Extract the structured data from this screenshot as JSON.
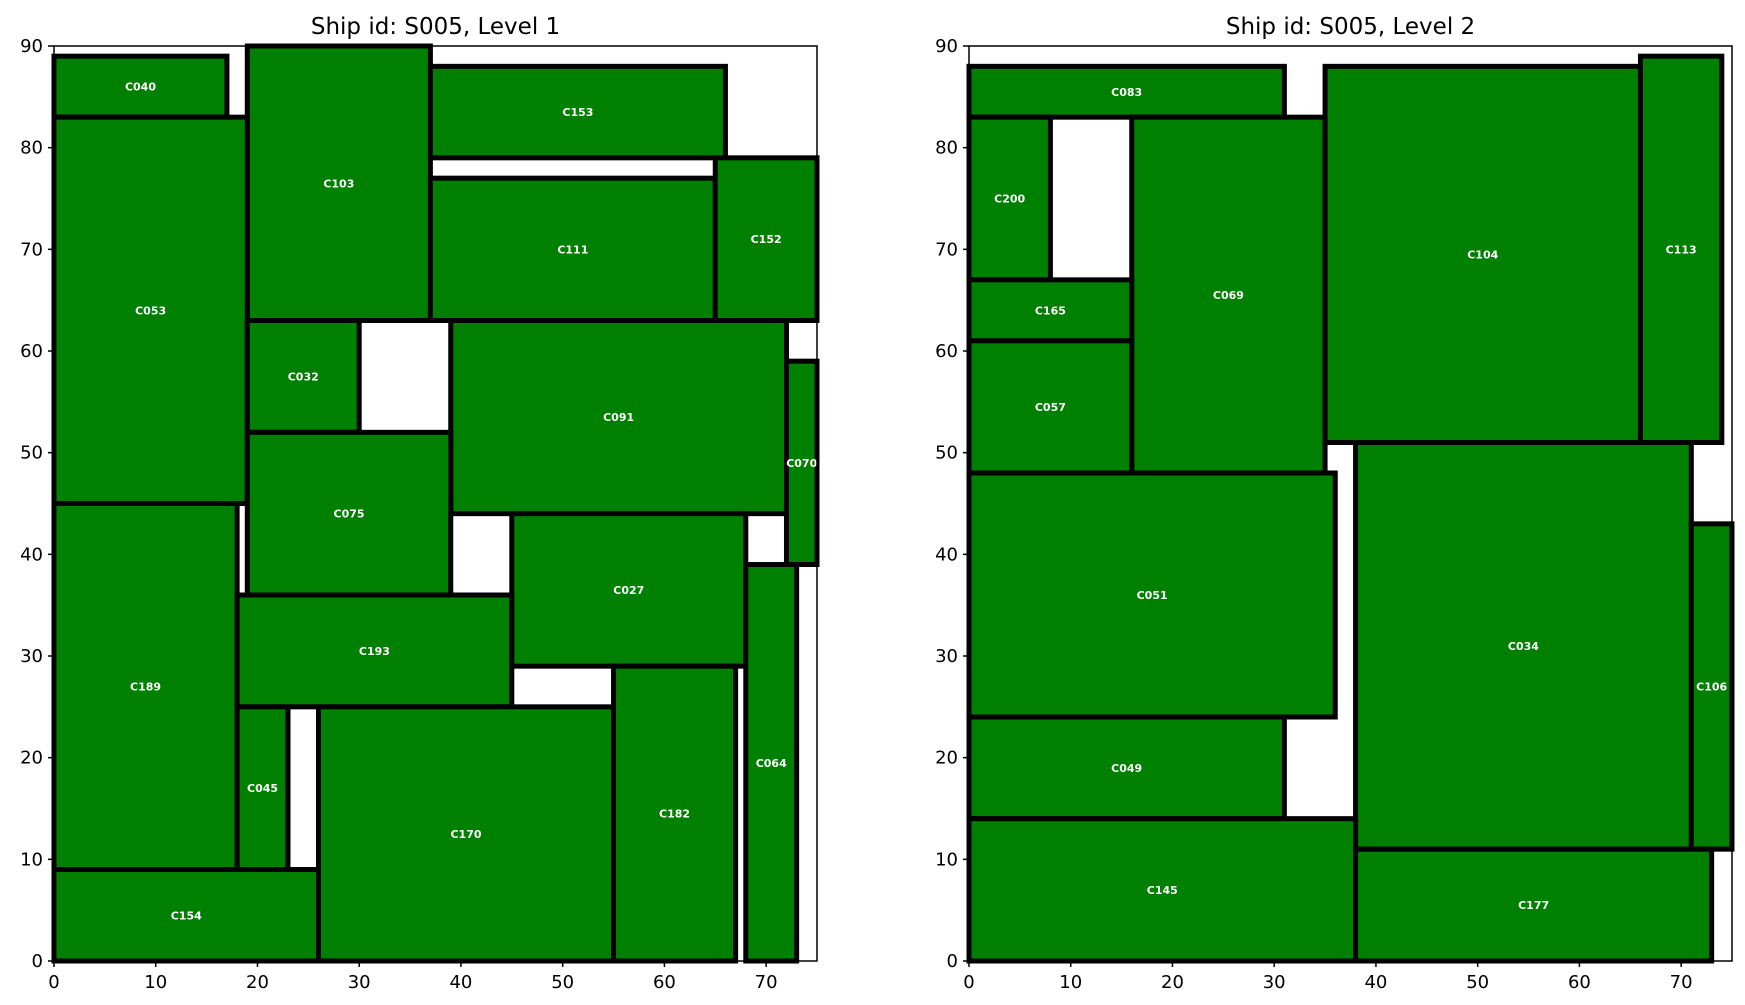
{
  "chart_data": [
    {
      "type": "rectangle_layout",
      "title": "Ship id: S005, Level 1",
      "xlim": [
        0,
        75
      ],
      "ylim": [
        0,
        90
      ],
      "xticks": [
        0,
        10,
        20,
        30,
        40,
        50,
        60,
        70
      ],
      "yticks": [
        0,
        10,
        20,
        30,
        40,
        50,
        60,
        70,
        80,
        90
      ],
      "grid": false,
      "fill_color": "#008000",
      "edge_color": "#000000",
      "label_color": "#ffffff",
      "containers": [
        {
          "id": "C040",
          "x": 0,
          "y": 83,
          "w": 17,
          "h": 6
        },
        {
          "id": "C103",
          "x": 19,
          "y": 63,
          "w": 18,
          "h": 27
        },
        {
          "id": "C153",
          "x": 37,
          "y": 79,
          "w": 29,
          "h": 9
        },
        {
          "id": "C053",
          "x": 0,
          "y": 45,
          "w": 19,
          "h": 38
        },
        {
          "id": "C111",
          "x": 37,
          "y": 63,
          "w": 28,
          "h": 14
        },
        {
          "id": "C152",
          "x": 65,
          "y": 63,
          "w": 10,
          "h": 16
        },
        {
          "id": "C032",
          "x": 19,
          "y": 52,
          "w": 11,
          "h": 11
        },
        {
          "id": "C091",
          "x": 39,
          "y": 44,
          "w": 33,
          "h": 19
        },
        {
          "id": "C070",
          "x": 72,
          "y": 39,
          "w": 3,
          "h": 20
        },
        {
          "id": "C075",
          "x": 19,
          "y": 36,
          "w": 20,
          "h": 16
        },
        {
          "id": "C189",
          "x": 0,
          "y": 9,
          "w": 18,
          "h": 36
        },
        {
          "id": "C027",
          "x": 45,
          "y": 29,
          "w": 23,
          "h": 15
        },
        {
          "id": "C193",
          "x": 18,
          "y": 25,
          "w": 27,
          "h": 11
        },
        {
          "id": "C045",
          "x": 18,
          "y": 9,
          "w": 5,
          "h": 16
        },
        {
          "id": "C170",
          "x": 26,
          "y": 0,
          "w": 29,
          "h": 25
        },
        {
          "id": "C182",
          "x": 55,
          "y": 0,
          "w": 12,
          "h": 29
        },
        {
          "id": "C064",
          "x": 68,
          "y": 0,
          "w": 5,
          "h": 39
        },
        {
          "id": "C154",
          "x": 0,
          "y": 0,
          "w": 26,
          "h": 9
        }
      ]
    },
    {
      "type": "rectangle_layout",
      "title": "Ship id: S005, Level 2",
      "xlim": [
        0,
        75
      ],
      "ylim": [
        0,
        90
      ],
      "xticks": [
        0,
        10,
        20,
        30,
        40,
        50,
        60,
        70
      ],
      "yticks": [
        0,
        10,
        20,
        30,
        40,
        50,
        60,
        70,
        80,
        90
      ],
      "grid": false,
      "fill_color": "#008000",
      "edge_color": "#000000",
      "label_color": "#ffffff",
      "containers": [
        {
          "id": "C083",
          "x": 0,
          "y": 83,
          "w": 31,
          "h": 5
        },
        {
          "id": "C200",
          "x": 0,
          "y": 67,
          "w": 8,
          "h": 16
        },
        {
          "id": "C069",
          "x": 16,
          "y": 48,
          "w": 19,
          "h": 35
        },
        {
          "id": "C104",
          "x": 35,
          "y": 51,
          "w": 31,
          "h": 37
        },
        {
          "id": "C113",
          "x": 66,
          "y": 51,
          "w": 8,
          "h": 38
        },
        {
          "id": "C165",
          "x": 0,
          "y": 61,
          "w": 16,
          "h": 6
        },
        {
          "id": "C057",
          "x": 0,
          "y": 48,
          "w": 16,
          "h": 13
        },
        {
          "id": "C051",
          "x": 0,
          "y": 24,
          "w": 36,
          "h": 24
        },
        {
          "id": "C034",
          "x": 38,
          "y": 11,
          "w": 33,
          "h": 40
        },
        {
          "id": "C106",
          "x": 71,
          "y": 11,
          "w": 4,
          "h": 32
        },
        {
          "id": "C049",
          "x": 0,
          "y": 14,
          "w": 31,
          "h": 10
        },
        {
          "id": "C145",
          "x": 0,
          "y": 0,
          "w": 38,
          "h": 14
        },
        {
          "id": "C177",
          "x": 38,
          "y": 0,
          "w": 35,
          "h": 11
        }
      ]
    }
  ]
}
